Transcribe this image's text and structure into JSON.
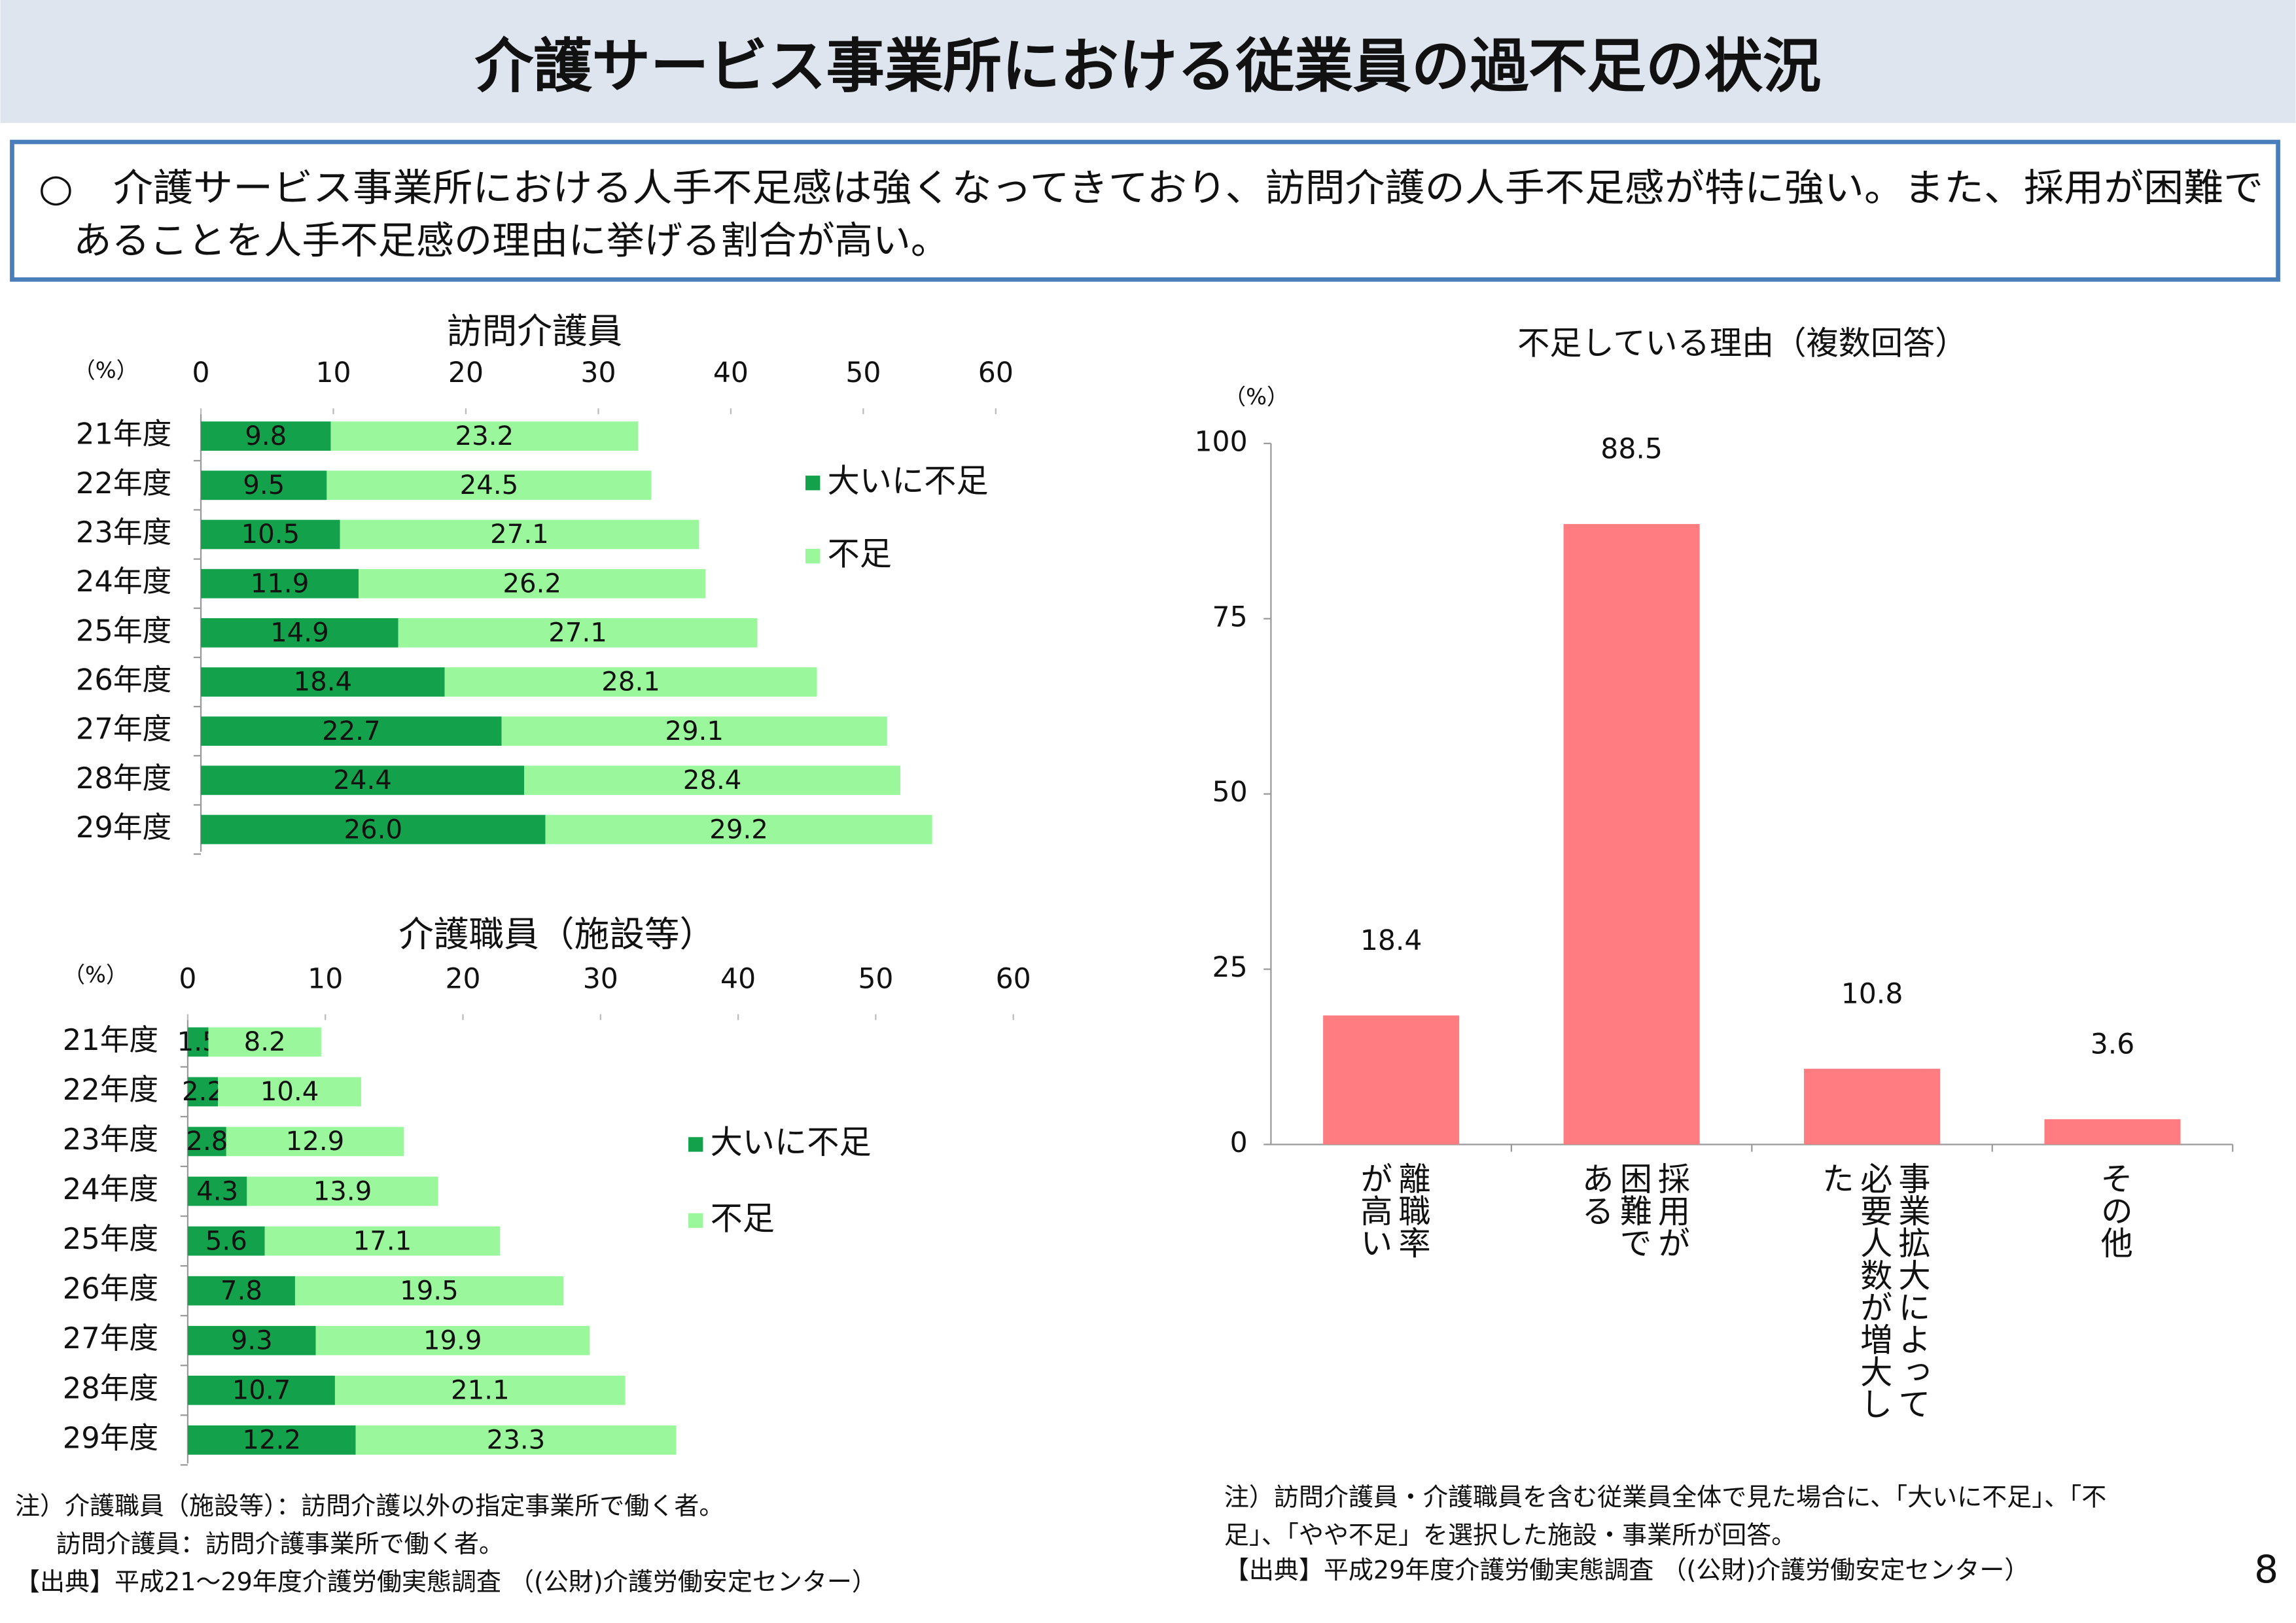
{
  "title": "介護サービス事業所における従業員の過不足の状況",
  "summary": [
    "○　介護サービス事業所における人手不足感は強くなってきており、訪問介護の人手不足感が特に強い。また、採用が困難で",
    "あることを人手不足感の理由に挙げる割合が高い。"
  ],
  "chart_data": [
    {
      "type": "hbar_stacked",
      "title": "訪問介護員",
      "unit_label": "（%）",
      "categories": [
        "21年度",
        "22年度",
        "23年度",
        "24年度",
        "25年度",
        "26年度",
        "27年度",
        "28年度",
        "29年度"
      ],
      "series": [
        {
          "name": "大いに不足",
          "color": "#13a24b",
          "values": [
            9.8,
            9.5,
            10.5,
            11.9,
            14.9,
            18.4,
            22.7,
            24.4,
            26.0
          ],
          "value_labels": [
            "9.8",
            "9.5",
            "10.5",
            "11.9",
            "14.9",
            "18.4",
            "22.7",
            "24.4",
            "26.0"
          ]
        },
        {
          "name": "不足",
          "color": "#9af79b",
          "values": [
            23.2,
            24.5,
            27.1,
            26.2,
            27.1,
            28.1,
            29.1,
            28.4,
            29.2
          ]
        }
      ],
      "xlim": [
        0,
        60
      ],
      "xticks": [
        0,
        10,
        20,
        30,
        40,
        50,
        60
      ]
    },
    {
      "type": "hbar_stacked",
      "title": "介護職員（施設等）",
      "unit_label": "（%）",
      "categories": [
        "21年度",
        "22年度",
        "23年度",
        "24年度",
        "25年度",
        "26年度",
        "27年度",
        "28年度",
        "29年度"
      ],
      "series": [
        {
          "name": "大いに不足",
          "color": "#13a24b",
          "values": [
            1.5,
            2.2,
            2.8,
            4.3,
            5.6,
            7.8,
            9.3,
            10.7,
            12.2
          ]
        },
        {
          "name": "不足",
          "color": "#9af79b",
          "values": [
            8.2,
            10.4,
            12.9,
            13.9,
            17.1,
            19.5,
            19.9,
            21.1,
            23.3
          ]
        }
      ],
      "xlim": [
        0,
        60
      ],
      "xticks": [
        0,
        10,
        20,
        30,
        40,
        50,
        60
      ]
    },
    {
      "type": "bar",
      "title": "不足している理由（複数回答）",
      "unit_label": "（%）",
      "categories": [
        "離職率が高い",
        "採用が困難である",
        "事業拡大によって必要人数が増大した",
        "その他"
      ],
      "values": [
        18.4,
        88.5,
        10.8,
        3.6
      ],
      "color": "#ff7c80",
      "ylim": [
        0,
        100
      ],
      "yticks": [
        0,
        25,
        50,
        75,
        100
      ]
    }
  ],
  "notes_left": [
    "注）介護職員（施設等）：訪問介護以外の指定事業所で働く者。",
    "訪問介護員：訪問介護事業所で働く者。",
    "【出典】平成21～29年度介護労働実態調査 （(公財)介護労働安定センター）"
  ],
  "notes_right": [
    "注）訪問介護員・介護職員を含む従業員全体で見た場合に、「大いに不足」、「不",
    "足」、「やや不足」を選択した施設・事業所が回答。",
    "【出典】平成29年度介護労働実態調査 （(公財)介護労働安定センター）"
  ],
  "page_number": "8"
}
